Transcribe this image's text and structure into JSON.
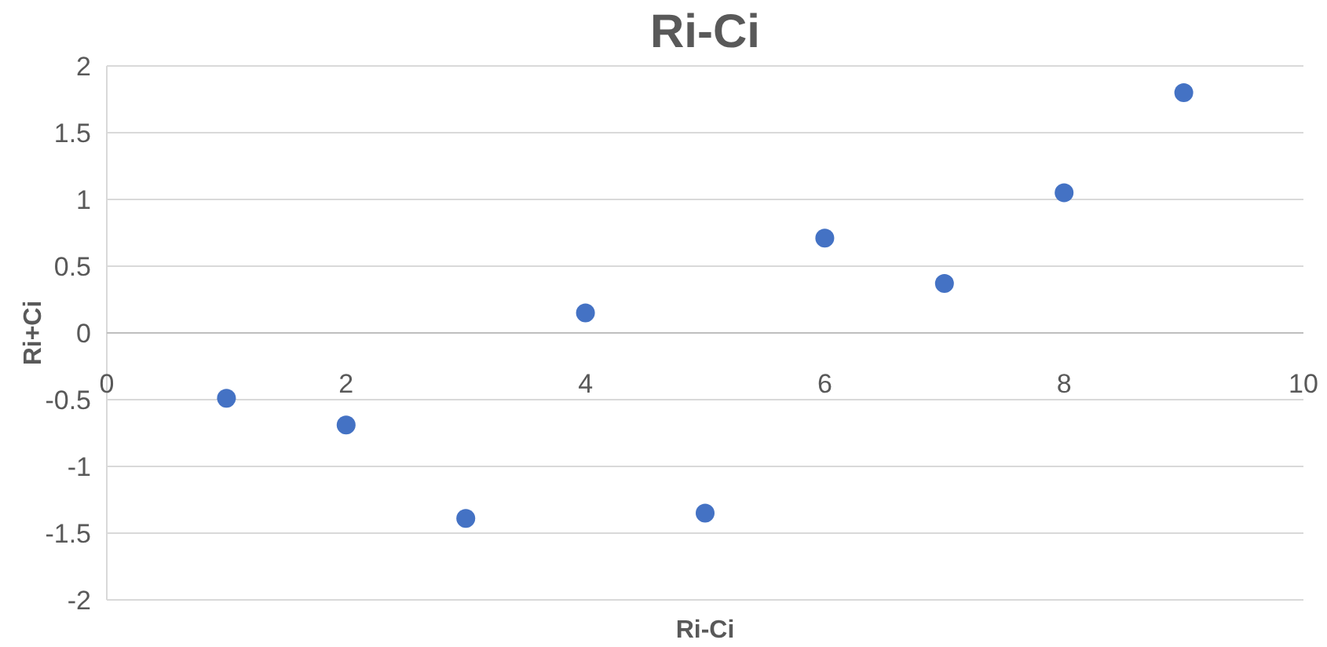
{
  "chart_data": {
    "type": "scatter",
    "title": "Ri-Ci",
    "xlabel": "Ri-Ci",
    "ylabel": "Ri+Ci",
    "x": [
      1,
      2,
      3,
      4,
      5,
      6,
      7,
      8,
      9
    ],
    "values": [
      -0.49,
      -0.69,
      -1.39,
      0.15,
      -1.35,
      0.71,
      0.37,
      1.05,
      1.8
    ],
    "color": "#4472c4",
    "marker": "circle",
    "grid": "y",
    "xlim": [
      0,
      10
    ],
    "xticks": [
      0,
      2,
      4,
      6,
      8,
      10
    ],
    "ylim": [
      -2,
      2
    ],
    "yticks": [
      -2,
      {
        "value": -1.5,
        "label": "-1.5"
      },
      -1,
      {
        "value": -0.5,
        "label": "-0.5"
      },
      0,
      {
        "value": 0.5,
        "label": "0.5"
      },
      1,
      {
        "value": 1.5,
        "label": "1.5"
      },
      2
    ]
  }
}
